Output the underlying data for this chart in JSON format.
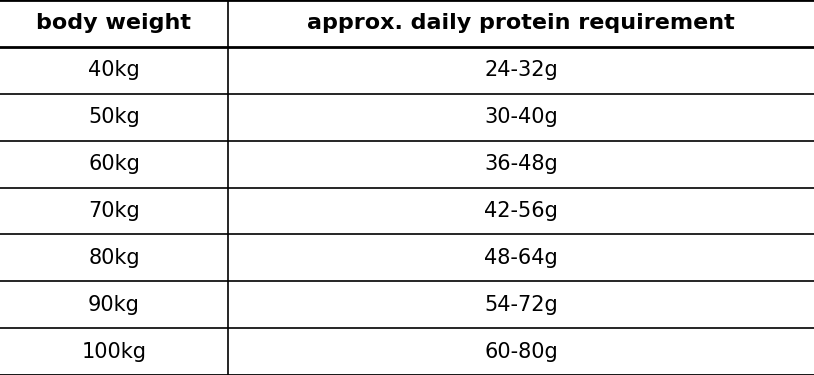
{
  "col_headers": [
    "body weight",
    "approx. daily protein requirement"
  ],
  "rows": [
    [
      "40kg",
      "24-32g"
    ],
    [
      "50kg",
      "30-40g"
    ],
    [
      "60kg",
      "36-48g"
    ],
    [
      "70kg",
      "42-56g"
    ],
    [
      "80kg",
      "48-64g"
    ],
    [
      "90kg",
      "54-72g"
    ],
    [
      "100kg",
      "60-80g"
    ]
  ],
  "background_color": "#ffffff",
  "text_color": "#000000",
  "line_color": "#000000",
  "header_fontsize": 16,
  "cell_fontsize": 15,
  "col_split": 0.28,
  "header_font_weight": "bold",
  "cell_font_weight": "normal",
  "font_family": "DejaVu Sans",
  "lw_thick": 2.0,
  "lw_thin": 1.2
}
